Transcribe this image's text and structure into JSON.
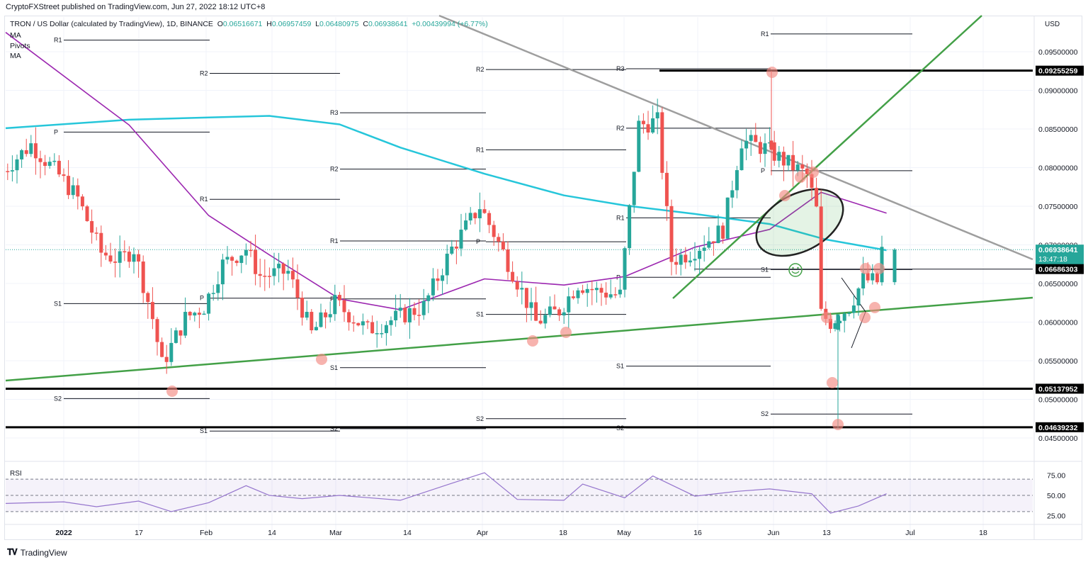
{
  "header": {
    "publisher_line": "CryptoFXStreet published on TradingView.com, Jun 27, 2022 18:12 UTC+8"
  },
  "legend": {
    "symbol": "TRON / US Dollar (calculated by TradingView), 1D, BINANCE",
    "open_label": "O",
    "open": "0.06516671",
    "high_label": "H",
    "high": "0.06957459",
    "low_label": "L",
    "low": "0.06480975",
    "close_label": "C",
    "close": "0.06938641",
    "change": "+0.00439994 (+6.77%)",
    "indicators": [
      "MA",
      "Pivots",
      "MA"
    ]
  },
  "price_axis": {
    "currency": "USD",
    "ticks": [
      "0.09500000",
      "0.09000000",
      "0.08500000",
      "0.08000000",
      "0.07500000",
      "0.07000000",
      "0.06500000",
      "0.06000000",
      "0.05500000",
      "0.05000000",
      "0.04500000"
    ],
    "badges": [
      {
        "label": "0.09255259",
        "kind": "level"
      },
      {
        "label": "0.06938641",
        "sub": "13:47:18",
        "kind": "last"
      },
      {
        "label": "0.06686303",
        "kind": "level"
      },
      {
        "label": "0.05137952",
        "kind": "level"
      },
      {
        "label": "0.04639232",
        "kind": "level"
      }
    ]
  },
  "time_axis": {
    "ticks": [
      "2022",
      "17",
      "Feb",
      "14",
      "Mar",
      "14",
      "Apr",
      "18",
      "May",
      "16",
      "Jun",
      "13",
      "Jul",
      "18"
    ]
  },
  "rsi": {
    "label": "RSI",
    "ticks": [
      "75.00",
      "50.00",
      "25.00"
    ]
  },
  "footer": {
    "brand": "TradingView"
  },
  "colors": {
    "up": "#26a69a",
    "down": "#ef5350",
    "ma_fast": "#9c27b0",
    "ma_slow": "#26c6da",
    "trendline_green": "#43a047",
    "trendline_gray": "#9e9e9e",
    "rsi_line": "#9575cd",
    "highlight": "#f28b82"
  },
  "chart_data": {
    "type": "candlestick",
    "title": "TRON / US Dollar (calculated by TradingView), 1D, BINANCE",
    "xlabel": "",
    "ylabel": "USD",
    "ylim": [
      0.044,
      0.098
    ],
    "x_range": [
      "2021-12-19",
      "2022-07-24"
    ],
    "last": {
      "open": 0.06516671,
      "high": 0.06957459,
      "low": 0.06480975,
      "close": 0.06938641,
      "change": 0.00439994,
      "change_pct": 6.77
    },
    "horizontal_levels": [
      0.09255259,
      0.06686303,
      0.05137952,
      0.04639232
    ],
    "pivot_periods": [
      {
        "period": "Dec",
        "P": 0.0846,
        "R1": 0.0965,
        "S1": 0.0624,
        "S2": 0.0501
      },
      {
        "period": "Jan",
        "R2": 0.0922,
        "R1": 0.0759,
        "P": 0.0631,
        "S1": 0.0459
      },
      {
        "period": "Feb",
        "R3": 0.0871,
        "R2": 0.0798,
        "R1": 0.0705,
        "P": 0.063,
        "S1": 0.0541,
        "S2": 0.0462
      },
      {
        "period": "Mar",
        "R2": 0.0927,
        "R1": 0.0823,
        "P": 0.0704,
        "S1": 0.061,
        "S2": 0.0475
      },
      {
        "period": "Apr",
        "R3": 0.0928,
        "R2": 0.0851,
        "R1": 0.0735,
        "P": 0.0658,
        "S1": 0.0543,
        "S2": 0.0463
      },
      {
        "period": "Jun",
        "R1": 0.0973,
        "P": 0.0796,
        "S1": 0.0668,
        "S2": 0.0481
      }
    ],
    "series": [
      {
        "name": "MA (fast, purple)",
        "points": [
          [
            "2021-12-19",
            0.0975
          ],
          [
            "2022-01-15",
            0.0855
          ],
          [
            "2022-02-01",
            0.0738
          ],
          [
            "2022-02-14",
            0.0687
          ],
          [
            "2022-03-01",
            0.063
          ],
          [
            "2022-03-14",
            0.0616
          ],
          [
            "2022-04-01",
            0.0656
          ],
          [
            "2022-04-18",
            0.0648
          ],
          [
            "2022-05-01",
            0.0659
          ],
          [
            "2022-05-16",
            0.0697
          ],
          [
            "2022-06-01",
            0.072
          ],
          [
            "2022-06-12",
            0.0768
          ],
          [
            "2022-06-26",
            0.0741
          ]
        ]
      },
      {
        "name": "MA (slow, cyan)",
        "points": [
          [
            "2021-12-19",
            0.0851
          ],
          [
            "2022-01-15",
            0.0862
          ],
          [
            "2022-02-01",
            0.0865
          ],
          [
            "2022-02-14",
            0.0867
          ],
          [
            "2022-03-01",
            0.0856
          ],
          [
            "2022-03-14",
            0.0826
          ],
          [
            "2022-04-01",
            0.0792
          ],
          [
            "2022-04-18",
            0.0764
          ],
          [
            "2022-05-01",
            0.0751
          ],
          [
            "2022-05-16",
            0.074
          ],
          [
            "2022-06-01",
            0.0727
          ],
          [
            "2022-06-13",
            0.0707
          ],
          [
            "2022-06-26",
            0.0693
          ]
        ]
      },
      {
        "name": "RSI",
        "ylim": [
          15,
          85
        ],
        "points": [
          [
            "2021-12-19",
            40
          ],
          [
            "2022-01-01",
            42
          ],
          [
            "2022-01-08",
            36
          ],
          [
            "2022-01-17",
            43
          ],
          [
            "2022-01-24",
            30
          ],
          [
            "2022-02-01",
            41
          ],
          [
            "2022-02-09",
            62
          ],
          [
            "2022-02-14",
            50
          ],
          [
            "2022-02-21",
            46
          ],
          [
            "2022-03-01",
            50
          ],
          [
            "2022-03-14",
            44
          ],
          [
            "2022-03-25",
            65
          ],
          [
            "2022-04-01",
            78
          ],
          [
            "2022-04-08",
            45
          ],
          [
            "2022-04-18",
            44
          ],
          [
            "2022-04-22",
            64
          ],
          [
            "2022-05-01",
            47
          ],
          [
            "2022-05-07",
            74
          ],
          [
            "2022-05-16",
            49
          ],
          [
            "2022-05-25",
            55
          ],
          [
            "2022-06-01",
            58
          ],
          [
            "2022-06-10",
            52
          ],
          [
            "2022-06-14",
            28
          ],
          [
            "2022-06-20",
            37
          ],
          [
            "2022-06-26",
            52
          ]
        ]
      }
    ],
    "annotations": [
      "Rising green support trendline from Dec 2021 lows",
      "Descending gray resistance trendline",
      "Steep green uptrend line from mid-May",
      "Green-shaded ellipse around MA crossover (early June)",
      "Smiley marker near S1 (Jun)",
      "Pennant/triangle drawing after Jun 13 low",
      "Red circles marking touches of key levels"
    ]
  }
}
